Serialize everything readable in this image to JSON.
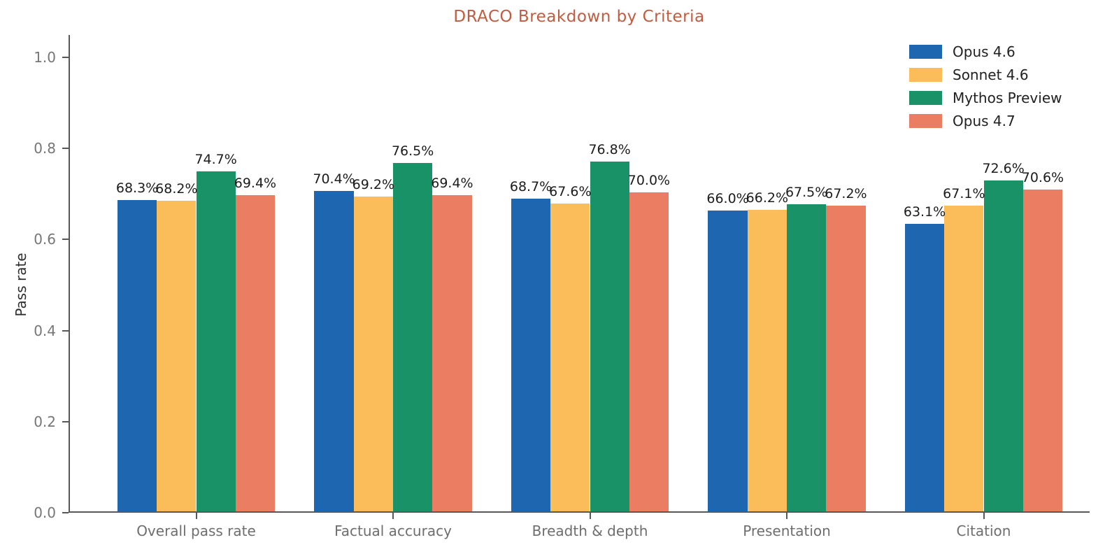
{
  "page": {
    "background": "#ffffff"
  },
  "chart_data": {
    "type": "bar",
    "title": "DRACO Breakdown by Criteria",
    "title_color": "#c15c40",
    "xlabel": "",
    "ylabel": "Pass rate",
    "categories": [
      "Overall pass rate",
      "Factual accuracy",
      "Breadth & depth",
      "Presentation",
      "Citation"
    ],
    "series": [
      {
        "name": "Opus 4.6",
        "color": "#1f66b1",
        "values": [
          0.683,
          0.704,
          0.687,
          0.66,
          0.631
        ],
        "labels": [
          "68.3%",
          "70.4%",
          "68.7%",
          "66.0%",
          "63.1%"
        ]
      },
      {
        "name": "Sonnet 4.6",
        "color": "#fbbd59",
        "values": [
          0.682,
          0.692,
          0.676,
          0.662,
          0.671
        ],
        "labels": [
          "68.2%",
          "69.2%",
          "67.6%",
          "66.2%",
          "67.1%"
        ]
      },
      {
        "name": "Mythos Preview",
        "color": "#1a9268",
        "values": [
          0.747,
          0.765,
          0.768,
          0.675,
          0.726
        ],
        "labels": [
          "74.7%",
          "76.5%",
          "76.8%",
          "67.5%",
          "72.6%"
        ]
      },
      {
        "name": "Opus 4.7",
        "color": "#eb7e62",
        "values": [
          0.694,
          0.694,
          0.7,
          0.672,
          0.706
        ],
        "labels": [
          "69.4%",
          "69.4%",
          "70.0%",
          "67.2%",
          "70.6%"
        ]
      }
    ],
    "ylim": [
      0.0,
      1.05
    ],
    "yticks": [
      0.0,
      0.2,
      0.4,
      0.6,
      0.8,
      1.0
    ],
    "ytick_labels": [
      "0.0",
      "0.2",
      "0.4",
      "0.6",
      "0.8",
      "1.0"
    ],
    "grid": false,
    "legend_position": "upper right"
  },
  "style": {
    "axis_color": "#58585a",
    "ytick_label_color": "#767676",
    "xtick_label_color": "#6e6e6e",
    "value_label_color": "#1c1c1c",
    "legend_text_color": "#212121"
  }
}
